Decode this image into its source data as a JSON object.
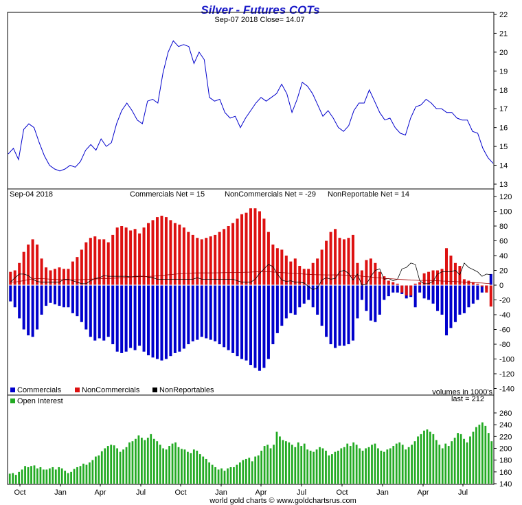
{
  "title": "Silver - Futures COTs",
  "colors": {
    "title": "#1a1ac8",
    "price_line": "#0000cc",
    "commercials": "#0000cc",
    "noncommercials": "#dd1111",
    "nonreportables": "#000000",
    "open_interest": "#22aa22"
  },
  "price_panel": {
    "subtitle": "Sep-07  2018   Close= 14.07"
  },
  "cot_panel": {
    "date_label": "Sep-04  2018",
    "commercials_net": "Commercials Net = 15",
    "noncommercials_net": "NonCommercials Net = -29",
    "nonreportable_net": "NonReportable Net = 14",
    "legend_commercials": "Commercials",
    "legend_noncommercials": "NonCommercials",
    "legend_nonreportables": "NonReportables",
    "volumes_note": "volumes in 1000's"
  },
  "oi_panel": {
    "legend_open_interest": "Open Interest",
    "last_note": "last = 212"
  },
  "footer": "world gold charts © www.goldchartsrus.com",
  "chart_data": [
    {
      "type": "line",
      "series": [
        {
          "values": [
            14.6,
            14.9,
            14.3,
            15.9,
            16.2,
            16.0,
            15.2,
            14.5,
            14.0,
            13.8,
            13.7,
            13.8,
            14.0,
            13.9,
            14.2,
            14.8,
            15.1,
            14.8,
            15.4,
            15.0,
            15.2,
            16.2,
            16.9,
            17.3,
            16.9,
            16.4,
            16.2,
            17.4,
            17.5,
            17.3,
            18.9,
            20.0,
            20.6,
            20.3,
            20.4,
            20.3,
            19.4,
            20.0,
            19.6,
            17.6,
            17.4,
            17.5,
            16.8,
            16.5,
            16.6,
            16.0,
            16.5,
            16.9,
            17.3,
            17.6,
            17.4,
            17.6,
            17.8,
            18.3,
            17.8,
            16.8,
            17.5,
            18.4,
            18.2,
            17.8,
            17.2,
            16.6,
            16.9,
            16.5,
            16.0,
            15.8,
            16.1,
            16.9,
            17.3,
            17.3,
            18.0,
            17.4,
            16.8,
            16.4,
            16.5,
            16.0,
            15.7,
            15.6,
            16.5,
            17.1,
            17.2,
            17.5,
            17.3,
            17.0,
            17.0,
            16.8,
            16.8,
            16.5,
            16.4,
            16.4,
            15.8,
            15.7,
            14.9,
            14.4,
            14.1
          ]
        }
      ],
      "x_ticks": [
        "Oct",
        "Jan",
        "Apr",
        "Jul",
        "Oct",
        "Jan",
        "Apr",
        "Jul",
        "Oct",
        "Jan",
        "Apr",
        "Jul"
      ],
      "y_ticks": [
        13,
        14,
        15,
        16,
        17,
        18,
        19,
        20,
        21,
        22
      ],
      "ylim": [
        13,
        22
      ]
    },
    {
      "type": "bar",
      "series": [
        {
          "name": "Commercials",
          "values": [
            -22,
            -30,
            -45,
            -60,
            -68,
            -70,
            -60,
            -40,
            -28,
            -24,
            -26,
            -28,
            -30,
            -30,
            -38,
            -42,
            -50,
            -60,
            -70,
            -75,
            -72,
            -75,
            -70,
            -80,
            -90,
            -92,
            -90,
            -85,
            -88,
            -82,
            -90,
            -95,
            -98,
            -100,
            -102,
            -100,
            -96,
            -92,
            -90,
            -86,
            -80,
            -76,
            -74,
            -70,
            -72,
            -74,
            -76,
            -80,
            -84,
            -88,
            -92,
            -96,
            -100,
            -102,
            -108,
            -112,
            -116,
            -112,
            -100,
            -80,
            -65,
            -55,
            -45,
            -38,
            -40,
            -30,
            -25,
            -20,
            -30,
            -40,
            -55,
            -70,
            -80,
            -85,
            -82,
            -82,
            -80,
            -75,
            -45,
            -20,
            -35,
            -48,
            -50,
            -40,
            -20,
            -15,
            -10,
            -10,
            -12,
            -18,
            -16,
            -30,
            -10,
            -18,
            -20,
            -25,
            -35,
            -40,
            -68,
            -58,
            -50,
            -40,
            -38,
            -30,
            -25,
            -20,
            -10,
            -5,
            15
          ]
        },
        {
          "name": "NonCommercials",
          "values": [
            18,
            20,
            30,
            45,
            55,
            62,
            55,
            36,
            24,
            20,
            22,
            24,
            22,
            22,
            32,
            38,
            48,
            58,
            64,
            66,
            62,
            62,
            58,
            68,
            78,
            80,
            78,
            74,
            76,
            70,
            78,
            84,
            88,
            92,
            94,
            92,
            88,
            84,
            82,
            78,
            72,
            68,
            64,
            62,
            64,
            66,
            68,
            72,
            76,
            80,
            84,
            90,
            96,
            98,
            104,
            104,
            100,
            90,
            72,
            55,
            50,
            48,
            40,
            32,
            36,
            26,
            22,
            22,
            30,
            36,
            48,
            60,
            72,
            76,
            64,
            62,
            64,
            68,
            30,
            20,
            34,
            36,
            30,
            18,
            12,
            6,
            4,
            2,
            -10,
            -14,
            -14,
            2,
            4,
            16,
            18,
            20,
            20,
            22,
            50,
            40,
            30,
            26,
            8,
            6,
            4,
            2,
            -2,
            -10,
            -29
          ]
        },
        {
          "name": "NonReportables",
          "values": [
            4,
            10,
            15,
            15,
            13,
            8,
            5,
            4,
            4,
            4,
            4,
            4,
            8,
            8,
            6,
            4,
            2,
            2,
            6,
            9,
            10,
            13,
            12,
            12,
            12,
            12,
            12,
            11,
            12,
            12,
            12,
            11,
            10,
            8,
            8,
            8,
            8,
            8,
            8,
            8,
            8,
            8,
            10,
            8,
            8,
            8,
            8,
            8,
            8,
            8,
            8,
            6,
            4,
            4,
            4,
            8,
            16,
            22,
            28,
            25,
            15,
            7,
            5,
            6,
            4,
            4,
            3,
            -2,
            -6,
            -4,
            7,
            10,
            8,
            9,
            18,
            20,
            16,
            7,
            15,
            0,
            1,
            12,
            20,
            22,
            8,
            9,
            6,
            8,
            22,
            24,
            30,
            28,
            6,
            2,
            2,
            5,
            15,
            18,
            18,
            18,
            20,
            14,
            30,
            24,
            21,
            18,
            12,
            15,
            14
          ]
        }
      ],
      "y_ticks": [
        -140,
        -120,
        -100,
        -80,
        -60,
        -40,
        -20,
        0,
        20,
        40,
        60,
        80,
        100,
        120
      ],
      "ylim": [
        -140,
        120
      ]
    },
    {
      "type": "bar",
      "series": [
        {
          "name": "Open Interest",
          "values": [
            157,
            158,
            155,
            160,
            164,
            170,
            168,
            170,
            171,
            166,
            168,
            164,
            164,
            166,
            168,
            164,
            168,
            166,
            162,
            158,
            160,
            165,
            168,
            170,
            174,
            172,
            176,
            180,
            186,
            188,
            195,
            200,
            204,
            206,
            205,
            200,
            194,
            198,
            202,
            210,
            212,
            216,
            222,
            218,
            214,
            218,
            224,
            216,
            212,
            206,
            200,
            198,
            204,
            208,
            210,
            202,
            199,
            198,
            194,
            192,
            198,
            196,
            190,
            186,
            182,
            176,
            172,
            168,
            164,
            166,
            162,
            166,
            168,
            168,
            172,
            176,
            180,
            182,
            184,
            178,
            186,
            188,
            196,
            204,
            206,
            200,
            206,
            228,
            220,
            214,
            212,
            210,
            206,
            202,
            210,
            204,
            208,
            198,
            196,
            194,
            198,
            202,
            200,
            196,
            188,
            190,
            194,
            196,
            200,
            202,
            208,
            204,
            210,
            206,
            200,
            196,
            200,
            202,
            206,
            208,
            200,
            196,
            194,
            198,
            200,
            204,
            208,
            210,
            206,
            198,
            202,
            206,
            212,
            220,
            224,
            230,
            232,
            228,
            224,
            214,
            206,
            200,
            208,
            204,
            212,
            218,
            226,
            224,
            216,
            210,
            220,
            228,
            236,
            240,
            244,
            238,
            226,
            212
          ]
        }
      ],
      "x_ticks": [
        "Oct",
        "Jan",
        "Apr",
        "Jul",
        "Oct",
        "Jan",
        "Apr",
        "Jul",
        "Oct",
        "Jan",
        "Apr",
        "Jul"
      ],
      "y_ticks": [
        140,
        160,
        180,
        200,
        220,
        240,
        260
      ],
      "ylim": [
        140,
        270
      ]
    }
  ]
}
